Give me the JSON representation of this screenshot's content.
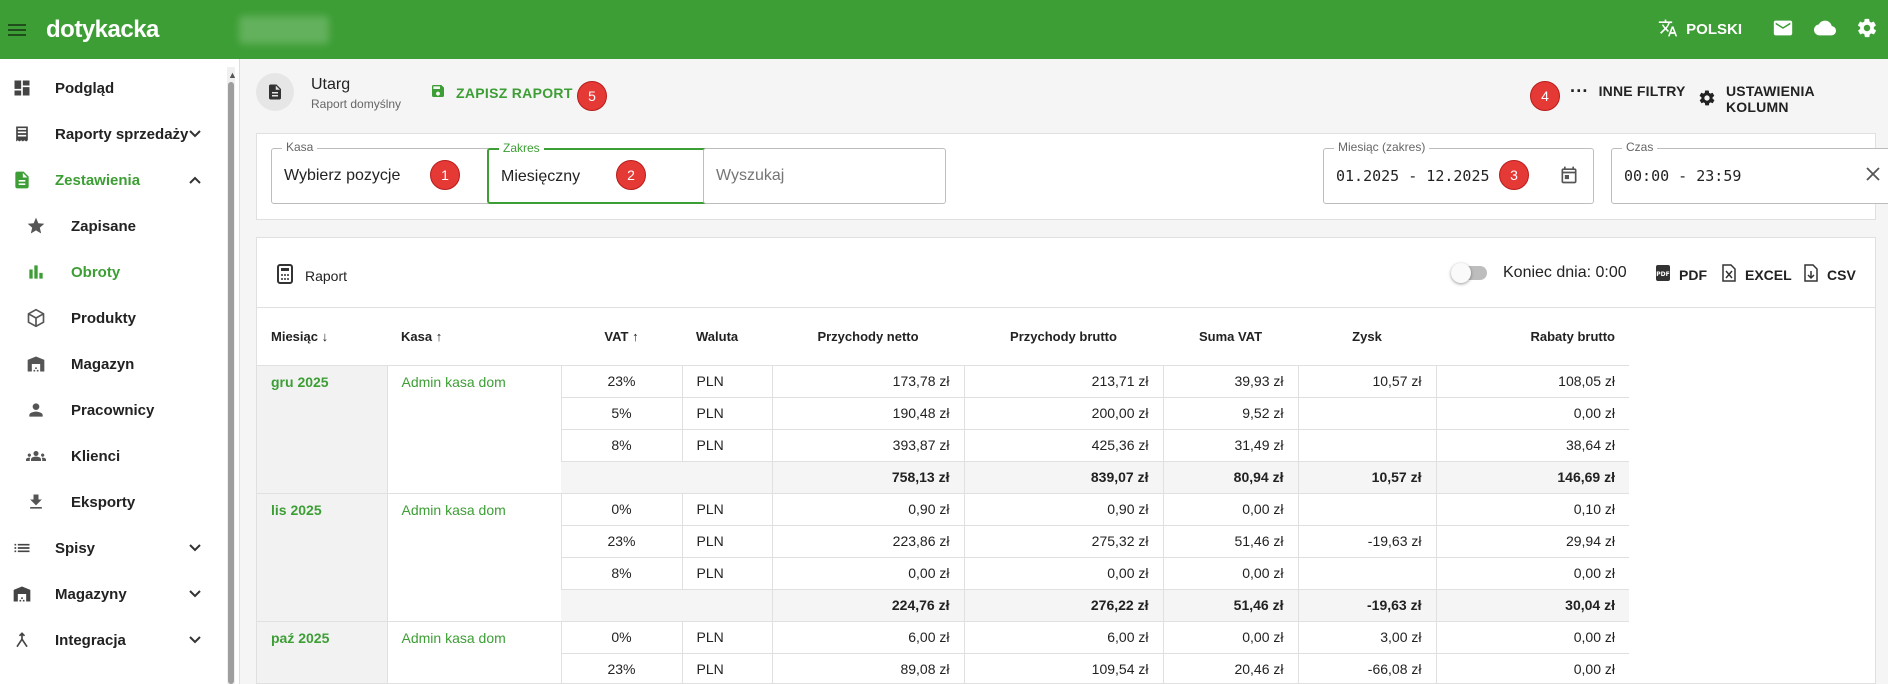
{
  "app": {
    "logo": "dotykacka",
    "language": "POLSKI"
  },
  "sidebar": {
    "items": [
      {
        "label": "Podgląd",
        "icon": "dashboard-icon"
      },
      {
        "label": "Raporty sprzedaży",
        "icon": "receipt-icon"
      },
      {
        "label": "Zestawienia",
        "icon": "document-icon"
      },
      {
        "label": "Zapisane",
        "icon": "star-icon"
      },
      {
        "label": "Obroty",
        "icon": "bar-chart-icon"
      },
      {
        "label": "Produkty",
        "icon": "cube-icon"
      },
      {
        "label": "Magazyn",
        "icon": "warehouse-icon"
      },
      {
        "label": "Pracownicy",
        "icon": "person-icon"
      },
      {
        "label": "Klienci",
        "icon": "group-icon"
      },
      {
        "label": "Eksporty",
        "icon": "download-icon"
      },
      {
        "label": "Spisy",
        "icon": "list-icon"
      },
      {
        "label": "Magazyny",
        "icon": "warehouse-icon"
      },
      {
        "label": "Integracja",
        "icon": "merge-icon"
      }
    ]
  },
  "header": {
    "title": "Utarg",
    "subtitle": "Raport domyślny",
    "save_label": "ZAPISZ RAPORT",
    "other_filters_label": "INNE FILTRY",
    "columns_settings_label": "USTAWIENIA KOLUMN"
  },
  "badges": {
    "b1": "1",
    "b2": "2",
    "b3": "3",
    "b4": "4",
    "b5": "5"
  },
  "filters": {
    "kasa": {
      "label": "Kasa",
      "value": "Wybierz pozycje"
    },
    "zakres": {
      "label": "Zakres",
      "value": "Miesięczny"
    },
    "search": {
      "placeholder": "Wyszukaj"
    },
    "month_range": {
      "label": "Miesiąc (zakres)",
      "value": "01.2025 - 12.2025"
    },
    "time": {
      "label": "Czas",
      "value": "00:00 - 23:59"
    }
  },
  "report": {
    "label": "Raport",
    "end_of_day": "Koniec dnia: 0:00",
    "pdf": "PDF",
    "excel": "EXCEL",
    "csv": "CSV",
    "columns": [
      "Miesiąc",
      "Kasa",
      "VAT",
      "Waluta",
      "Przychody netto",
      "Przychody brutto",
      "Suma VAT",
      "Zysk",
      "Rabaty brutto"
    ],
    "groups": [
      {
        "month": "gru 2025",
        "kasa": "Admin kasa dom",
        "rows": [
          {
            "vat": "23%",
            "cur": "PLN",
            "netto": "173,78 zł",
            "brutto": "213,71 zł",
            "suma_vat": "39,93 zł",
            "zysk": "10,57 zł",
            "rabaty": "108,05 zł"
          },
          {
            "vat": "5%",
            "cur": "PLN",
            "netto": "190,48 zł",
            "brutto": "200,00 zł",
            "suma_vat": "9,52 zł",
            "zysk": "",
            "rabaty": "0,00 zł"
          },
          {
            "vat": "8%",
            "cur": "PLN",
            "netto": "393,87 zł",
            "brutto": "425,36 zł",
            "suma_vat": "31,49 zł",
            "zysk": "",
            "rabaty": "38,64 zł"
          }
        ],
        "total": {
          "netto": "758,13 zł",
          "brutto": "839,07 zł",
          "suma_vat": "80,94 zł",
          "zysk": "10,57 zł",
          "rabaty": "146,69 zł"
        }
      },
      {
        "month": "lis 2025",
        "kasa": "Admin kasa dom",
        "rows": [
          {
            "vat": "0%",
            "cur": "PLN",
            "netto": "0,90 zł",
            "brutto": "0,90 zł",
            "suma_vat": "0,00 zł",
            "zysk": "",
            "rabaty": "0,10 zł"
          },
          {
            "vat": "23%",
            "cur": "PLN",
            "netto": "223,86 zł",
            "brutto": "275,32 zł",
            "suma_vat": "51,46 zł",
            "zysk": "-19,63 zł",
            "rabaty": "29,94 zł"
          },
          {
            "vat": "8%",
            "cur": "PLN",
            "netto": "0,00 zł",
            "brutto": "0,00 zł",
            "suma_vat": "0,00 zł",
            "zysk": "",
            "rabaty": "0,00 zł"
          }
        ],
        "total": {
          "netto": "224,76 zł",
          "brutto": "276,22 zł",
          "suma_vat": "51,46 zł",
          "zysk": "-19,63 zł",
          "rabaty": "30,04 zł"
        }
      },
      {
        "month": "paź 2025",
        "kasa": "Admin kasa dom",
        "rows": [
          {
            "vat": "0%",
            "cur": "PLN",
            "netto": "6,00 zł",
            "brutto": "6,00 zł",
            "suma_vat": "0,00 zł",
            "zysk": "3,00 zł",
            "rabaty": "0,00 zł"
          },
          {
            "vat": "23%",
            "cur": "PLN",
            "netto": "89,08 zł",
            "brutto": "109,54 zł",
            "suma_vat": "20,46 zł",
            "zysk": "-66,08 zł",
            "rabaty": "0,00 zł"
          }
        ]
      }
    ]
  }
}
